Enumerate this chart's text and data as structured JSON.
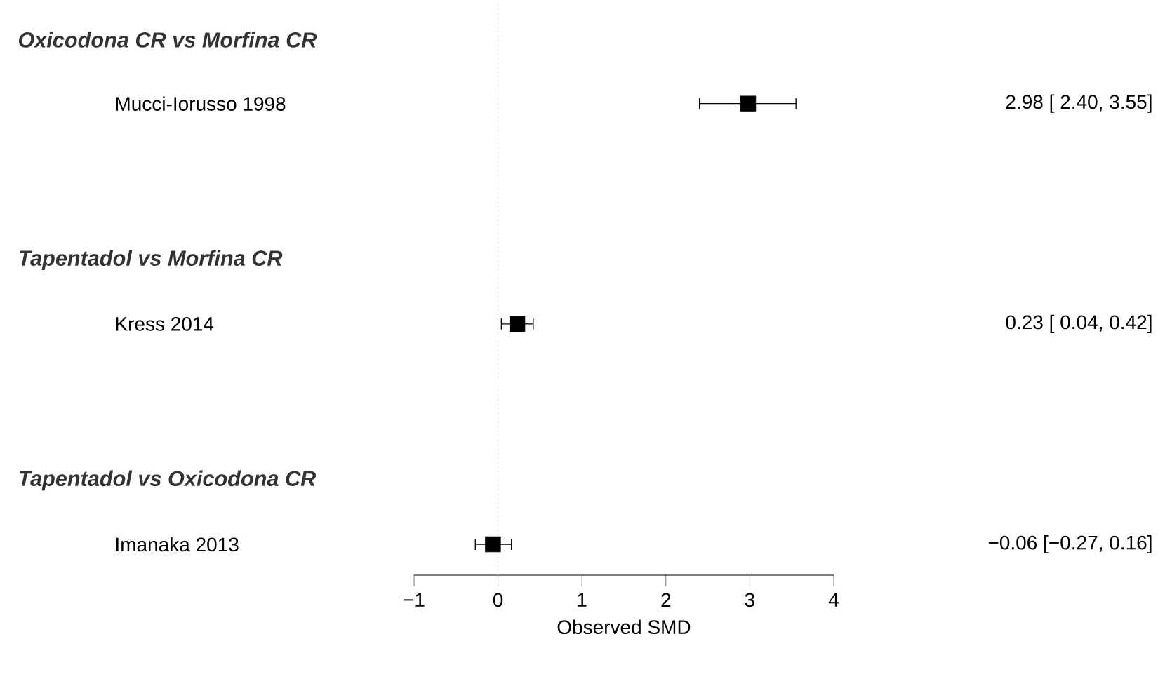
{
  "chart_data": {
    "type": "scatter",
    "orientation": "horizontal",
    "categories": [
      "Mucci-Iorusso 1998",
      "Kress 2014",
      "Imanaka 2013"
    ],
    "values": [
      2.98,
      0.23,
      -0.06
    ],
    "errors": [
      [
        2.4,
        3.55
      ],
      [
        0.04,
        0.42
      ],
      [
        -0.27,
        0.16
      ]
    ],
    "value_labels": [
      "2.98 [ 2.40, 3.55]",
      "0.23 [ 0.04, 0.42]",
      "−0.06 [−0.27, 0.16]"
    ],
    "color": "#000000",
    "marker": "square",
    "xlim": [
      -1,
      4
    ],
    "xticks": [
      {
        "value": -1,
        "label": "−1"
      },
      0,
      1,
      2,
      3,
      4
    ],
    "xlabel": "Observed SMD",
    "ref_lines": [
      {
        "axis": "x",
        "value": 0,
        "color": "#bbbbbb",
        "line_style": "dotted"
      }
    ],
    "annotations": [
      "Oxicodona CR vs Morfina CR",
      "Tapentadol vs Morfina CR",
      "Tapentadol vs Oxicodona CR"
    ],
    "grid": false
  }
}
